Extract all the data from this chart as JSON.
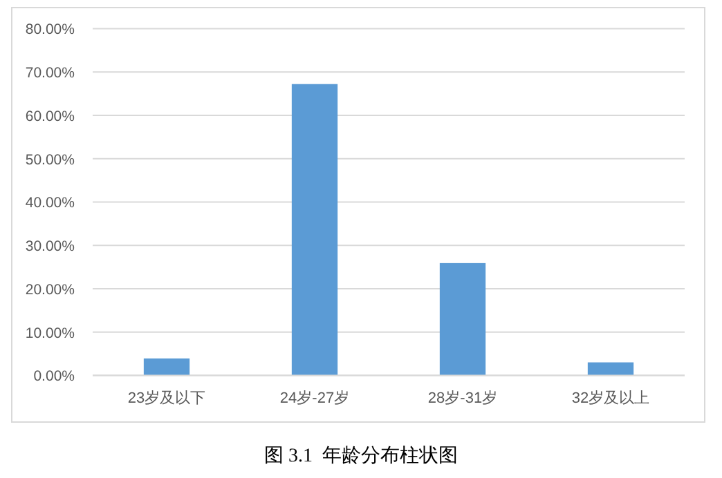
{
  "chart_data": {
    "type": "bar",
    "title": "图 3.1  年龄分布柱状图",
    "categories": [
      "23岁及以下",
      "24岁-27岁",
      "28岁-31岁",
      "32岁及以上"
    ],
    "values": [
      3.9,
      67.2,
      25.9,
      3.0
    ],
    "color": "#5b9bd5",
    "ylim": [
      0,
      80
    ],
    "yticks": [
      {
        "value": 0,
        "label": "0.00%"
      },
      {
        "value": 10,
        "label": "10.00%"
      },
      {
        "value": 20,
        "label": "20.00%"
      },
      {
        "value": 30,
        "label": "30.00%"
      },
      {
        "value": 40,
        "label": "40.00%"
      },
      {
        "value": 50,
        "label": "50.00%"
      },
      {
        "value": 60,
        "label": "60.00%"
      },
      {
        "value": 70,
        "label": "70.00%"
      },
      {
        "value": 80,
        "label": "80.00%"
      }
    ],
    "grid": "y"
  }
}
